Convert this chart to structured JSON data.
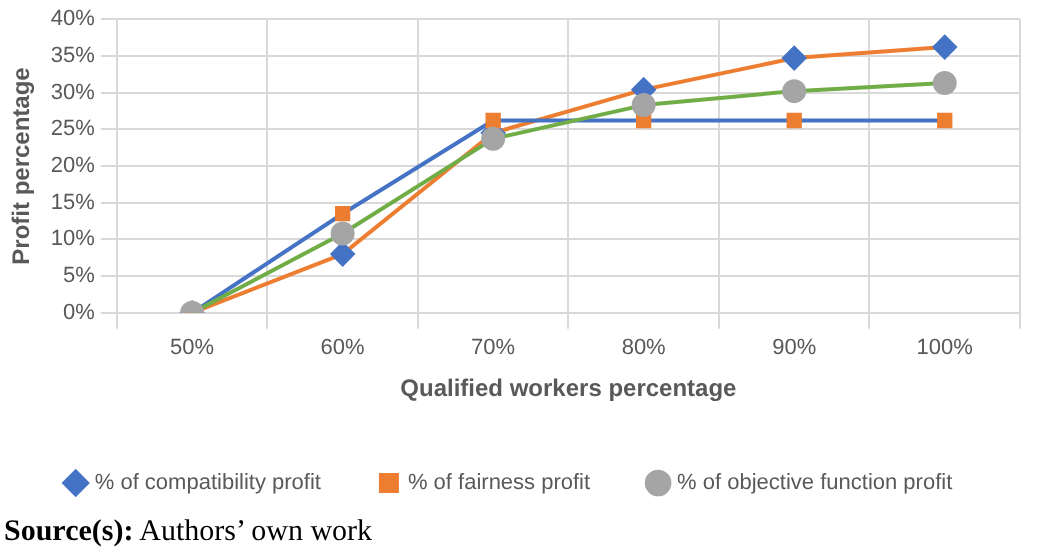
{
  "chart_data": {
    "type": "line",
    "xlabel": "Qualified workers percentage",
    "ylabel": "Profit percentage",
    "categories": [
      "50%",
      "60%",
      "70%",
      "80%",
      "90%",
      "100%"
    ],
    "series": [
      {
        "name": "% of compatibility profit",
        "color": "#ed7d31",
        "colors": [
          "#4472c4",
          "#4472c4",
          "#4472c4",
          "#4472c4",
          "#4472c4",
          "#4472c4"
        ],
        "marker": "diamond",
        "values": [
          0,
          8.0,
          24.5,
          30.4,
          34.7,
          36.2
        ]
      },
      {
        "name": "% of fairness profit",
        "color": "#4472c4",
        "colors": [
          "#ed7d31",
          "#ed7d31",
          "#ed7d31",
          "#ed7d31",
          "#ed7d31",
          "#ed7d31"
        ],
        "marker": "square",
        "values": [
          0,
          13.5,
          26.2,
          26.2,
          26.2,
          26.2
        ]
      },
      {
        "name": "% of objective function profit",
        "color": "#70ad47",
        "colors": [
          "#a5a5a5",
          "#a5a5a5",
          "#a5a5a5",
          "#a5a5a5",
          "#a5a5a5",
          "#a5a5a5"
        ],
        "marker": "circle",
        "values": [
          0,
          10.8,
          23.7,
          28.3,
          30.2,
          31.3
        ]
      }
    ],
    "ylim": [
      0,
      40
    ],
    "yticks": [
      {
        "value": 0,
        "label": "0%"
      },
      {
        "value": 5,
        "label": "5%"
      },
      {
        "value": 10,
        "label": "10%"
      },
      {
        "value": 15,
        "label": "15%"
      },
      {
        "value": 20,
        "label": "20%"
      },
      {
        "value": 25,
        "label": "25%"
      },
      {
        "value": 30,
        "label": "30%"
      },
      {
        "value": 35,
        "label": "35%"
      },
      {
        "value": 40,
        "label": "40%"
      }
    ],
    "grid": true,
    "legend": "bottom",
    "annotations": [
      "Source(s): Authors’ own work"
    ]
  }
}
